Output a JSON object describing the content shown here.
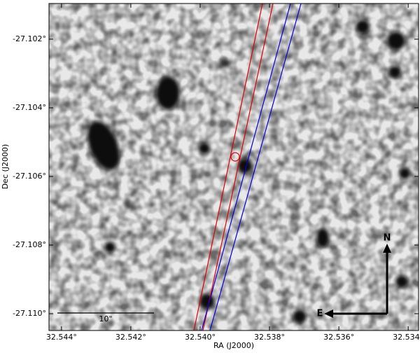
{
  "chart_data": {
    "type": "image",
    "xlabel": "RA (J2000)",
    "ylabel": "Dec (J2000)",
    "xlim": [
      32.54436,
      32.5337
    ],
    "ylim": [
      -27.11049,
      -27.10096
    ],
    "xticks": [
      {
        "value": 32.544,
        "label": "32.544°"
      },
      {
        "value": 32.542,
        "label": "32.542°"
      },
      {
        "value": 32.54,
        "label": "32.540°"
      },
      {
        "value": 32.538,
        "label": "32.538°"
      },
      {
        "value": 32.536,
        "label": "32.536°"
      },
      {
        "value": 32.534,
        "label": "32.534°"
      }
    ],
    "yticks": [
      {
        "value": -27.102,
        "label": "-27.102°"
      },
      {
        "value": -27.104,
        "label": "-27.104°"
      },
      {
        "value": -27.106,
        "label": "-27.106°"
      },
      {
        "value": -27.108,
        "label": "-27.108°"
      },
      {
        "value": -27.11,
        "label": "-27.110°"
      }
    ],
    "scale_bar_label": "10\"",
    "compass": {
      "north": "N",
      "east": "E"
    }
  }
}
